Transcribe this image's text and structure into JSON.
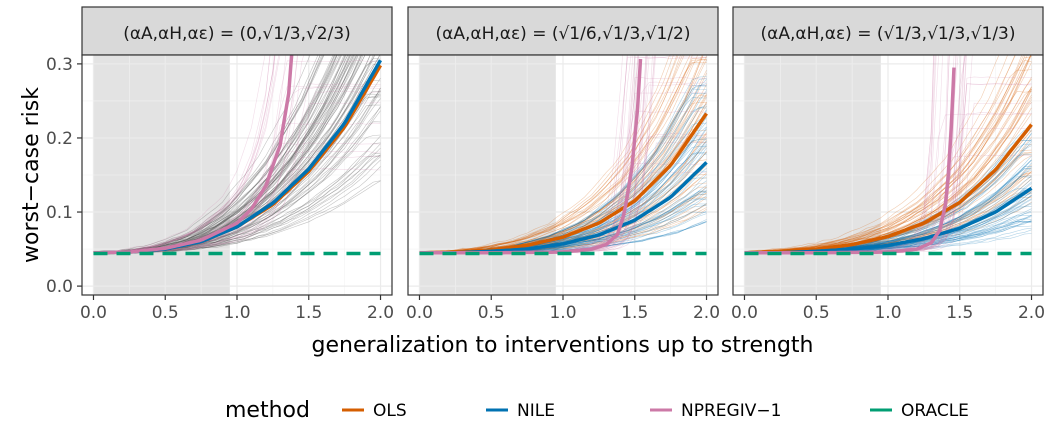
{
  "chart_data": {
    "type": "line",
    "xlabel": "generalization to interventions up to strength",
    "ylabel": "worst−case risk",
    "xlim": [
      -0.08,
      2.08
    ],
    "ylim": [
      -0.012,
      0.312
    ],
    "x_ticks": [
      "0.0",
      "0.5",
      "1.0",
      "1.5",
      "2.0"
    ],
    "x_tick_values": [
      0,
      0.5,
      1,
      1.5,
      2
    ],
    "y_ticks": [
      "0.0",
      "0.1",
      "0.2",
      "0.3"
    ],
    "y_tick_values": [
      0,
      0.1,
      0.2,
      0.3
    ],
    "shaded_region_x": [
      0,
      0.95
    ],
    "grid": true,
    "legend": {
      "title": "method",
      "position": "bottom",
      "entries": [
        {
          "label": "OLS",
          "color": "#D55E00"
        },
        {
          "label": "NILE",
          "color": "#0072B2"
        },
        {
          "label": "NPREGIV−1",
          "color": "#CC79A7"
        },
        {
          "label": "ORACLE",
          "color": "#009E73"
        }
      ]
    },
    "panels": [
      {
        "strip_lhs": "(αA,αH,αε)",
        "strip_rhs": "(0,√1/3,√2/3)",
        "series": [
          {
            "name": "OLS",
            "x": [
              0,
              0.25,
              0.5,
              0.75,
              1,
              1.25,
              1.5,
              1.75,
              2
            ],
            "y": [
              0.045,
              0.046,
              0.05,
              0.06,
              0.08,
              0.11,
              0.155,
              0.215,
              0.298
            ]
          },
          {
            "name": "NILE",
            "x": [
              0,
              0.25,
              0.5,
              0.75,
              1,
              1.25,
              1.5,
              1.75,
              2
            ],
            "y": [
              0.045,
              0.046,
              0.05,
              0.06,
              0.08,
              0.112,
              0.158,
              0.22,
              0.305
            ]
          },
          {
            "name": "NPREGIV−1",
            "x": [
              0,
              0.25,
              0.5,
              0.75,
              1,
              1.1,
              1.2,
              1.3,
              1.36,
              1.4
            ],
            "y": [
              0.045,
              0.046,
              0.051,
              0.062,
              0.085,
              0.104,
              0.135,
              0.19,
              0.26,
              0.36
            ]
          },
          {
            "name": "ORACLE",
            "x": [
              0,
              2
            ],
            "y": [
              0.044,
              0.044
            ]
          }
        ]
      },
      {
        "strip_lhs": "(αA,αH,αε)",
        "strip_rhs": "(√1/6,√1/3,√1/2)",
        "series": [
          {
            "name": "OLS",
            "x": [
              0,
              0.25,
              0.5,
              0.75,
              1,
              1.25,
              1.5,
              1.75,
              2
            ],
            "y": [
              0.045,
              0.046,
              0.049,
              0.055,
              0.066,
              0.085,
              0.115,
              0.163,
              0.233
            ]
          },
          {
            "name": "NILE",
            "x": [
              0,
              0.25,
              0.5,
              0.75,
              1,
              1.25,
              1.5,
              1.75,
              2
            ],
            "y": [
              0.045,
              0.045,
              0.047,
              0.05,
              0.057,
              0.069,
              0.089,
              0.12,
              0.167
            ]
          },
          {
            "name": "NPREGIV−1",
            "x": [
              0,
              0.5,
              1,
              1.2,
              1.3,
              1.38,
              1.43,
              1.48,
              1.52,
              1.55
            ],
            "y": [
              0.045,
              0.045,
              0.046,
              0.05,
              0.056,
              0.07,
              0.1,
              0.16,
              0.24,
              0.34
            ]
          },
          {
            "name": "ORACLE",
            "x": [
              0,
              2
            ],
            "y": [
              0.044,
              0.044
            ]
          }
        ]
      },
      {
        "strip_lhs": "(αA,αH,αε)",
        "strip_rhs": "(√1/3,√1/3,√1/3)",
        "series": [
          {
            "name": "OLS",
            "x": [
              0,
              0.25,
              0.5,
              0.75,
              1,
              1.25,
              1.5,
              1.75,
              2
            ],
            "y": [
              0.045,
              0.047,
              0.05,
              0.056,
              0.067,
              0.085,
              0.113,
              0.157,
              0.218
            ]
          },
          {
            "name": "NILE",
            "x": [
              0,
              0.25,
              0.5,
              0.75,
              1,
              1.25,
              1.5,
              1.75,
              2
            ],
            "y": [
              0.045,
              0.045,
              0.047,
              0.05,
              0.055,
              0.064,
              0.078,
              0.1,
              0.132
            ]
          },
          {
            "name": "NPREGIV−1",
            "x": [
              0,
              0.5,
              1,
              1.2,
              1.3,
              1.36,
              1.4,
              1.43,
              1.45,
              1.47
            ],
            "y": [
              0.045,
              0.045,
              0.046,
              0.05,
              0.058,
              0.075,
              0.11,
              0.17,
              0.25,
              0.34
            ]
          },
          {
            "name": "ORACLE",
            "x": [
              0,
              2
            ],
            "y": [
              0.044,
              0.044
            ]
          }
        ]
      }
    ]
  }
}
